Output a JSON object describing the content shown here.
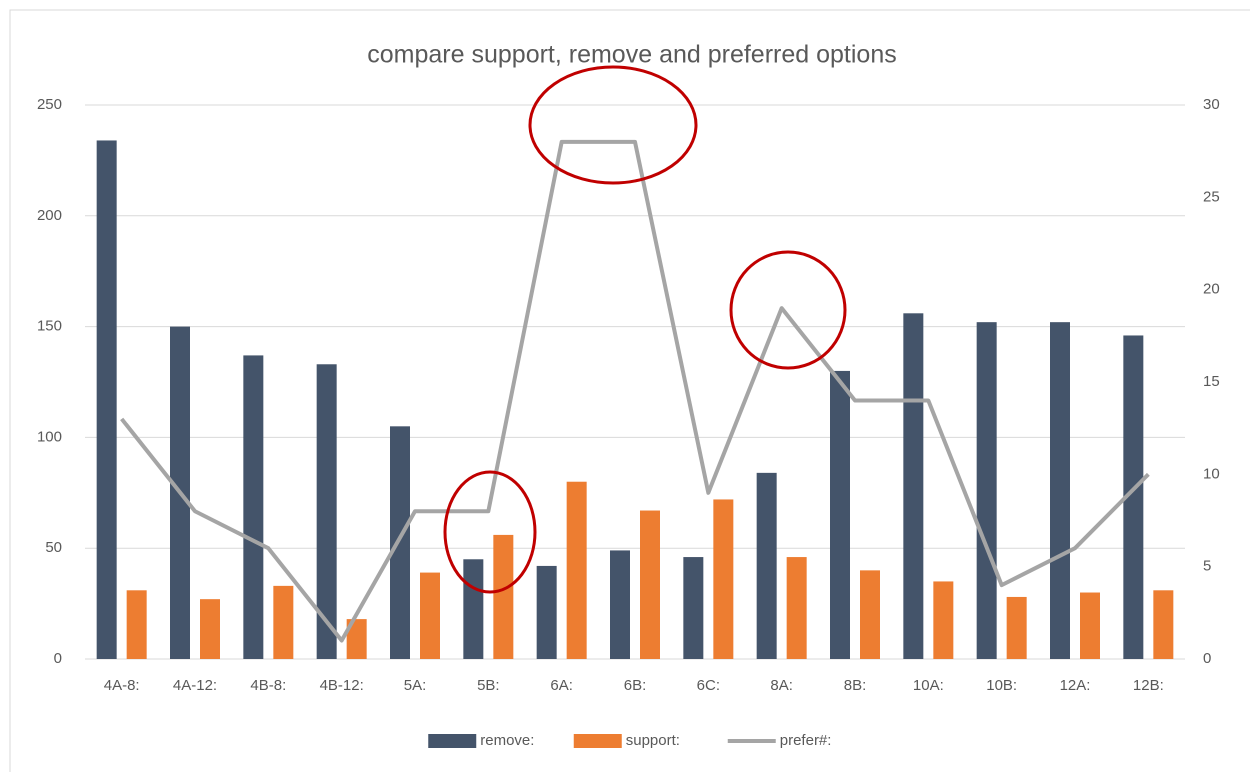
{
  "chart_data": {
    "type": "bar_line",
    "title": "compare support, remove and preferred options",
    "categories": [
      "4A-8:",
      "4A-12:",
      "4B-8:",
      "4B-12:",
      "5A:",
      "5B:",
      "6A:",
      "6B:",
      "6C:",
      "8A:",
      "8B:",
      "10A:",
      "10B:",
      "12A:",
      "12B:"
    ],
    "series": [
      {
        "name": "remove:",
        "type": "bar",
        "color": "#44546a",
        "values": [
          234,
          150,
          137,
          133,
          105,
          45,
          42,
          49,
          46,
          84,
          130,
          156,
          152,
          152,
          146
        ]
      },
      {
        "name": "support:",
        "type": "bar",
        "color": "#ed7d31",
        "values": [
          31,
          27,
          33,
          18,
          39,
          56,
          80,
          67,
          72,
          46,
          40,
          35,
          28,
          30,
          31
        ]
      },
      {
        "name": "prefer#:",
        "type": "line",
        "axis": "y2",
        "color": "#a5a5a5",
        "values": [
          13,
          8,
          6,
          1,
          8,
          8,
          28,
          28,
          9,
          19,
          14,
          14,
          4,
          6,
          10
        ]
      }
    ],
    "ylim": [
      0,
      250
    ],
    "yticks": [
      0,
      50,
      100,
      150,
      200,
      250
    ],
    "y2lim": [
      0,
      30
    ],
    "y2ticks": [
      0,
      5,
      10,
      15,
      20,
      25,
      30
    ],
    "grid": true,
    "legend": "bottom"
  }
}
